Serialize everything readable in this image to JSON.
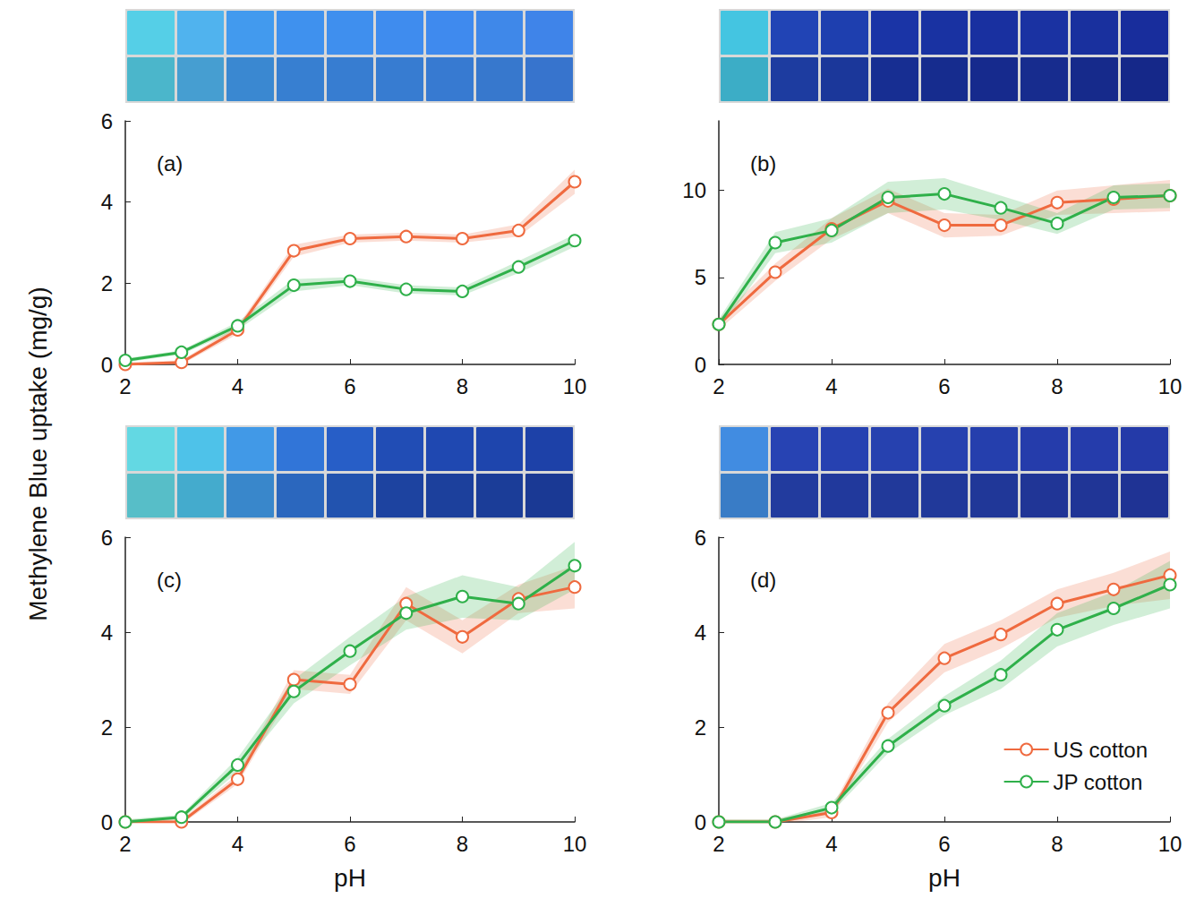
{
  "chart_data": [
    {
      "type": "line",
      "title": "(a)",
      "ylabel": "Methylene Blue uptake (mg/g)",
      "x": [
        2,
        3,
        4,
        5,
        6,
        7,
        8,
        9,
        10
      ],
      "xlim": [
        2,
        10
      ],
      "xticks": [
        2,
        4,
        6,
        8,
        10
      ],
      "ylim": [
        0,
        6
      ],
      "yticks": [
        0,
        2,
        4,
        6
      ],
      "grid": false,
      "marker": "circle",
      "series": [
        {
          "name": "US cotton",
          "color": "#ef6a3f",
          "values": [
            0.0,
            0.05,
            0.85,
            2.8,
            3.1,
            3.15,
            3.1,
            3.3,
            4.5
          ],
          "error": [
            0.05,
            0.05,
            0.1,
            0.15,
            0.1,
            0.1,
            0.1,
            0.15,
            0.3
          ]
        },
        {
          "name": "JP cotton",
          "color": "#2fb04a",
          "values": [
            0.1,
            0.3,
            0.95,
            1.95,
            2.05,
            1.85,
            1.8,
            2.4,
            3.05
          ],
          "error": [
            0.05,
            0.05,
            0.1,
            0.15,
            0.1,
            0.1,
            0.1,
            0.15,
            0.15
          ]
        }
      ]
    },
    {
      "type": "line",
      "title": "(b)",
      "x": [
        2,
        3,
        4,
        5,
        6,
        7,
        8,
        9,
        10
      ],
      "xlim": [
        2,
        10
      ],
      "xticks": [
        2,
        4,
        6,
        8,
        10
      ],
      "ylim": [
        0,
        14
      ],
      "yticks": [
        0,
        5,
        10
      ],
      "grid": false,
      "marker": "circle",
      "series": [
        {
          "name": "US cotton",
          "color": "#ef6a3f",
          "values": [
            2.3,
            5.3,
            7.8,
            9.4,
            8.0,
            8.0,
            9.3,
            9.5,
            9.7
          ],
          "error": [
            0.3,
            0.5,
            0.6,
            0.7,
            0.7,
            0.6,
            0.7,
            0.8,
            0.9
          ]
        },
        {
          "name": "JP cotton",
          "color": "#2fb04a",
          "values": [
            2.3,
            7.0,
            7.7,
            9.6,
            9.8,
            9.0,
            8.1,
            9.6,
            9.7
          ],
          "error": [
            0.3,
            0.6,
            0.7,
            0.9,
            0.9,
            0.7,
            0.6,
            0.7,
            0.7
          ]
        }
      ]
    },
    {
      "type": "line",
      "title": "(c)",
      "xlabel": "pH",
      "x": [
        2,
        3,
        4,
        5,
        6,
        7,
        8,
        9,
        10
      ],
      "xlim": [
        2,
        10
      ],
      "xticks": [
        2,
        4,
        6,
        8,
        10
      ],
      "ylim": [
        0,
        6
      ],
      "yticks": [
        0,
        2,
        4,
        6
      ],
      "grid": false,
      "marker": "circle",
      "series": [
        {
          "name": "US cotton",
          "color": "#ef6a3f",
          "values": [
            0.0,
            0.0,
            0.9,
            3.0,
            2.9,
            4.6,
            3.9,
            4.7,
            4.95
          ],
          "error": [
            0.05,
            0.05,
            0.1,
            0.2,
            0.2,
            0.35,
            0.35,
            0.3,
            0.45
          ]
        },
        {
          "name": "JP cotton",
          "color": "#2fb04a",
          "values": [
            0.0,
            0.1,
            1.2,
            2.75,
            3.6,
            4.4,
            4.75,
            4.6,
            5.4
          ],
          "error": [
            0.05,
            0.05,
            0.15,
            0.25,
            0.3,
            0.35,
            0.45,
            0.35,
            0.5
          ]
        }
      ]
    },
    {
      "type": "line",
      "title": "(d)",
      "xlabel": "pH",
      "legend": "lower right",
      "x": [
        2,
        3,
        4,
        5,
        6,
        7,
        8,
        9,
        10
      ],
      "xlim": [
        2,
        10
      ],
      "xticks": [
        2,
        4,
        6,
        8,
        10
      ],
      "ylim": [
        0,
        6
      ],
      "yticks": [
        0,
        2,
        4,
        6
      ],
      "grid": false,
      "marker": "circle",
      "series": [
        {
          "name": "US cotton",
          "color": "#ef6a3f",
          "values": [
            0.0,
            0.0,
            0.2,
            2.3,
            3.45,
            3.95,
            4.6,
            4.9,
            5.2
          ],
          "error": [
            0.05,
            0.05,
            0.1,
            0.2,
            0.3,
            0.3,
            0.3,
            0.35,
            0.5
          ]
        },
        {
          "name": "JP cotton",
          "color": "#2fb04a",
          "values": [
            0.0,
            0.0,
            0.3,
            1.6,
            2.45,
            3.1,
            4.05,
            4.5,
            5.0
          ],
          "error": [
            0.05,
            0.05,
            0.1,
            0.15,
            0.2,
            0.3,
            0.35,
            0.35,
            0.5
          ]
        }
      ]
    }
  ]
}
